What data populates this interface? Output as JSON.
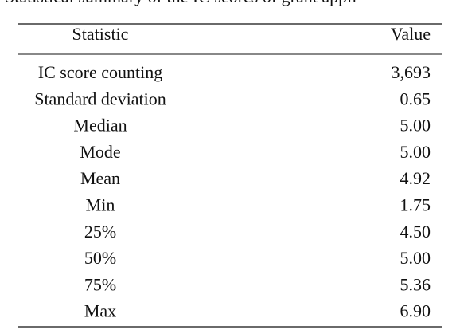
{
  "caption": "Statistical summary of the IC scores of grant appli",
  "table": {
    "header": [
      "Statistic",
      "Value"
    ],
    "rows": [
      [
        "IC score counting",
        "3,693"
      ],
      [
        "Standard deviation",
        "0.65"
      ],
      [
        "Median",
        "5.00"
      ],
      [
        "Mode",
        "5.00"
      ],
      [
        "Mean",
        "4.92"
      ],
      [
        "Min",
        "1.75"
      ],
      [
        "25%",
        "4.50"
      ],
      [
        "50%",
        "5.00"
      ],
      [
        "75%",
        "5.36"
      ],
      [
        "Max",
        "6.90"
      ]
    ]
  }
}
